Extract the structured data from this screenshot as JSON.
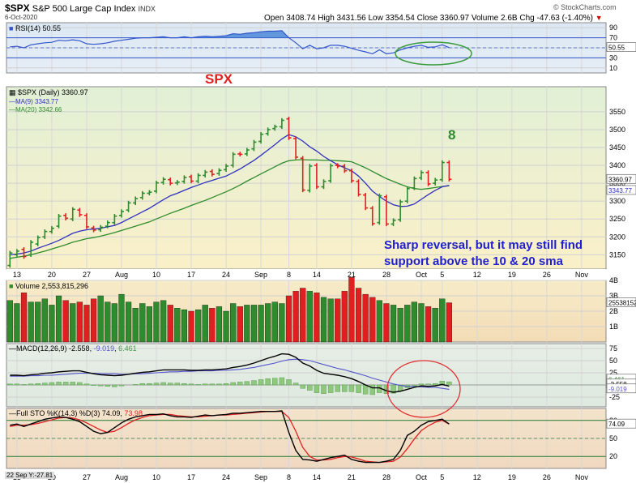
{
  "header": {
    "symbol": "$SPX",
    "name": "S&P 500 Large Cap Index",
    "exchange": "INDX",
    "date": "6-Oct-2020",
    "open_label": "Open",
    "open": "3408.74",
    "high_label": "High",
    "high": "3431.56",
    "low_label": "Low",
    "low": "3354.54",
    "close_label": "Close",
    "close": "3360.97",
    "volume_label": "Volume",
    "volume": "2.6B",
    "chg_label": "Chg",
    "chg": "-47.63 (-1.40%)",
    "brand": "© StockCharts.com"
  },
  "annotations": {
    "spx": "SPX",
    "count": "8",
    "note_line1": "Sharp reversal, but it may still find",
    "note_line2": "support above the 10 & 20 sma"
  },
  "footer": {
    "cursor_readout": "22 Sep Y:-27.81"
  },
  "colors": {
    "up": "#2e8b2e",
    "down": "#e02020",
    "ma9": "#3030c0",
    "ma20": "#2e8b2e",
    "rsi": "#3355cc",
    "macd_line": "#000000",
    "macd_signal": "#5555cc",
    "hist": "#66aa55",
    "sto_k": "#000000",
    "sto_d": "#e02020",
    "ellipse_green": "#3a9a3a",
    "ellipse_red": "#e03030"
  },
  "chart_data": {
    "type": "ohlc",
    "x_ticks": [
      {
        "label": "13",
        "i": 1
      },
      {
        "label": "20",
        "i": 6
      },
      {
        "label": "27",
        "i": 11
      },
      {
        "label": "Aug",
        "i": 16
      },
      {
        "label": "10",
        "i": 21
      },
      {
        "label": "17",
        "i": 26
      },
      {
        "label": "24",
        "i": 31
      },
      {
        "label": "Sep",
        "i": 36
      },
      {
        "label": "8",
        "i": 40
      },
      {
        "label": "14",
        "i": 44
      },
      {
        "label": "21",
        "i": 49
      },
      {
        "label": "28",
        "i": 54
      },
      {
        "label": "Oct",
        "i": 59
      },
      {
        "label": "5",
        "i": 62
      },
      {
        "label": "12",
        "i": 67
      },
      {
        "label": "19",
        "i": 72
      },
      {
        "label": "26",
        "i": 77
      },
      {
        "label": "Nov",
        "i": 82
      }
    ],
    "n_slots": 86,
    "price_panel": {
      "title": "$SPX (Daily) 3360.97",
      "ylim": [
        3110,
        3620
      ],
      "y_ticks": [
        3150,
        3200,
        3250,
        3300,
        3350,
        3400,
        3450,
        3500,
        3550
      ],
      "last_label": "3360.97",
      "ma_label": "3343.77",
      "legend": [
        {
          "name": "MA(9) 3343.77",
          "color": "#3030c0"
        },
        {
          "name": "MA(20) 3342.66",
          "color": "#2e8b2e"
        }
      ],
      "close": [
        3155,
        3160,
        3145,
        3185,
        3198,
        3215,
        3224,
        3258,
        3252,
        3277,
        3262,
        3228,
        3219,
        3227,
        3240,
        3258,
        3271,
        3295,
        3307,
        3322,
        3325,
        3351,
        3361,
        3350,
        3353,
        3366,
        3356,
        3372,
        3381,
        3375,
        3386,
        3398,
        3431,
        3431,
        3443,
        3465,
        3487,
        3500,
        3508,
        3526,
        3477,
        3423,
        3331,
        3398,
        3340,
        3355,
        3399,
        3398,
        3385,
        3357,
        3319,
        3281,
        3237,
        3315,
        3236,
        3246,
        3298,
        3335,
        3363,
        3380,
        3348,
        3359,
        3408,
        3361
      ],
      "open": [
        3120,
        3150,
        3165,
        3150,
        3180,
        3200,
        3215,
        3230,
        3260,
        3250,
        3275,
        3260,
        3225,
        3220,
        3230,
        3240,
        3260,
        3275,
        3295,
        3310,
        3322,
        3328,
        3352,
        3360,
        3351,
        3355,
        3368,
        3356,
        3372,
        3383,
        3377,
        3388,
        3400,
        3432,
        3432,
        3446,
        3467,
        3489,
        3503,
        3508,
        3530,
        3475,
        3420,
        3330,
        3400,
        3340,
        3357,
        3400,
        3398,
        3385,
        3355,
        3317,
        3280,
        3240,
        3312,
        3236,
        3248,
        3300,
        3337,
        3365,
        3380,
        3350,
        3360,
        3408
      ]
    },
    "ma9": [
      3150,
      3152,
      3155,
      3160,
      3168,
      3175,
      3182,
      3190,
      3200,
      3210,
      3216,
      3220,
      3222,
      3224,
      3228,
      3232,
      3240,
      3250,
      3260,
      3270,
      3280,
      3292,
      3304,
      3315,
      3322,
      3330,
      3338,
      3345,
      3352,
      3358,
      3364,
      3370,
      3380,
      3390,
      3402,
      3414,
      3428,
      3443,
      3458,
      3474,
      3486,
      3480,
      3468,
      3452,
      3440,
      3425,
      3413,
      3402,
      3393,
      3385,
      3370,
      3350,
      3328,
      3313,
      3300,
      3290,
      3285,
      3286,
      3292,
      3305,
      3318,
      3330,
      3340,
      3344
    ],
    "ma20": [
      3140,
      3143,
      3146,
      3150,
      3155,
      3160,
      3166,
      3172,
      3178,
      3185,
      3190,
      3195,
      3198,
      3202,
      3207,
      3212,
      3218,
      3224,
      3230,
      3236,
      3242,
      3250,
      3258,
      3266,
      3273,
      3280,
      3288,
      3295,
      3302,
      3310,
      3318,
      3326,
      3335,
      3345,
      3356,
      3366,
      3376,
      3386,
      3396,
      3406,
      3413,
      3415,
      3416,
      3415,
      3415,
      3414,
      3414,
      3413,
      3412,
      3410,
      3402,
      3393,
      3383,
      3373,
      3363,
      3355,
      3347,
      3340,
      3335,
      3333,
      3335,
      3338,
      3341,
      3343
    ],
    "rsi": {
      "title": "RSI(14) 50.55",
      "ylim": [
        0,
        100
      ],
      "y_ticks": [
        90,
        70,
        50,
        30,
        10
      ],
      "levels": [
        70,
        30
      ],
      "last_label": "50.55",
      "values": [
        52,
        53,
        50,
        56,
        58,
        60,
        61,
        65,
        64,
        66,
        64,
        58,
        57,
        58,
        60,
        63,
        65,
        67,
        69,
        70,
        70,
        71,
        72,
        70,
        70,
        72,
        70,
        72,
        73,
        72,
        73,
        74,
        78,
        77,
        79,
        80,
        82,
        83,
        83,
        84,
        70,
        60,
        48,
        55,
        48,
        50,
        55,
        55,
        53,
        49,
        45,
        42,
        38,
        46,
        38,
        40,
        46,
        50,
        53,
        55,
        51,
        52,
        56,
        50.55
      ]
    },
    "volume": {
      "title": "Volume 2,553,815,296",
      "ylim": [
        0,
        4
      ],
      "y_ticks": [
        "4B",
        "3B",
        "2B",
        "1B"
      ],
      "last_label": "2553815296",
      "values": [
        2.7,
        2.5,
        3.2,
        2.6,
        2.6,
        2.8,
        2.4,
        3.0,
        2.7,
        2.5,
        2.6,
        2.4,
        2.8,
        3.0,
        2.6,
        2.5,
        3.1,
        2.6,
        2.2,
        2.5,
        2.3,
        2.6,
        2.7,
        2.4,
        2.2,
        2.1,
        2.0,
        2.1,
        2.4,
        2.2,
        2.3,
        2.0,
        2.5,
        2.3,
        2.4,
        2.4,
        2.4,
        2.5,
        2.6,
        2.5,
        3.0,
        3.3,
        3.5,
        3.3,
        3.2,
        2.9,
        2.8,
        2.8,
        3.3,
        4.2,
        3.5,
        3.1,
        2.9,
        2.7,
        2.5,
        2.4,
        2.2,
        2.4,
        2.6,
        2.5,
        2.3,
        2.2,
        2.8,
        2.55
      ]
    },
    "macd": {
      "title": "MACD(12,26,9)",
      "title_values": [
        "-2.558",
        "-9.019",
        "6.461"
      ],
      "ylim": [
        -45,
        85
      ],
      "y_ticks": [
        75,
        50,
        25,
        0,
        -25
      ],
      "last_labels": [
        "6.461",
        "-2.558",
        "-9.019"
      ],
      "macd": [
        20,
        20,
        19,
        21,
        22,
        24,
        25,
        27,
        28,
        29,
        29,
        26,
        23,
        21,
        20,
        19,
        20,
        22,
        24,
        26,
        27,
        29,
        31,
        31,
        31,
        31,
        30,
        30,
        31,
        31,
        32,
        33,
        36,
        38,
        41,
        45,
        50,
        55,
        59,
        64,
        63,
        57,
        45,
        39,
        30,
        24,
        22,
        20,
        17,
        13,
        7,
        0,
        -6,
        -6,
        -12,
        -15,
        -13,
        -9,
        -5,
        -2,
        -3,
        -2,
        1,
        -2.558
      ],
      "signal": [
        18,
        18,
        18,
        19,
        19,
        20,
        20,
        21,
        22,
        23,
        24,
        24,
        24,
        23,
        23,
        23,
        22,
        22,
        23,
        23,
        24,
        25,
        26,
        27,
        27,
        28,
        28,
        29,
        29,
        29,
        30,
        30,
        31,
        32,
        34,
        36,
        39,
        42,
        45,
        49,
        52,
        53,
        52,
        50,
        46,
        42,
        38,
        34,
        31,
        27,
        23,
        19,
        14,
        10,
        6,
        2,
        -1,
        -3,
        -3,
        -4,
        -5,
        -5,
        -7,
        -9.019
      ],
      "hist": [
        2,
        2,
        1,
        2,
        3,
        4,
        5,
        6,
        6,
        6,
        5,
        2,
        -1,
        -2,
        -3,
        -4,
        -2,
        0,
        1,
        3,
        3,
        4,
        5,
        4,
        4,
        3,
        2,
        1,
        2,
        2,
        2,
        3,
        5,
        6,
        7,
        9,
        11,
        13,
        14,
        15,
        11,
        4,
        -7,
        -11,
        -16,
        -18,
        -16,
        -14,
        -14,
        -14,
        -16,
        -19,
        -20,
        -16,
        -18,
        -17,
        -12,
        -6,
        -2,
        2,
        2,
        3,
        8,
        6.461
      ]
    },
    "sto": {
      "title": "Full STO %K(14,3) %D(3)",
      "title_values": [
        "74.09",
        "73.98"
      ],
      "ylim": [
        0,
        100
      ],
      "y_ticks": [
        80,
        50,
        20
      ],
      "levels": [
        80,
        20
      ],
      "last_label": "74.09",
      "k": [
        72,
        74,
        70,
        74,
        78,
        82,
        84,
        86,
        85,
        82,
        78,
        70,
        62,
        58,
        60,
        68,
        76,
        82,
        86,
        88,
        90,
        90,
        91,
        88,
        86,
        86,
        85,
        87,
        89,
        88,
        89,
        90,
        92,
        92,
        93,
        94,
        95,
        95,
        95,
        96,
        60,
        30,
        15,
        14,
        12,
        15,
        18,
        20,
        22,
        15,
        12,
        10,
        10,
        10,
        12,
        15,
        30,
        55,
        62,
        72,
        78,
        80,
        82,
        74.09
      ],
      "d": [
        70,
        72,
        72,
        73,
        75,
        78,
        81,
        84,
        85,
        84,
        81,
        76,
        70,
        64,
        60,
        62,
        68,
        75,
        81,
        85,
        88,
        89,
        90,
        90,
        88,
        87,
        86,
        86,
        87,
        88,
        89,
        89,
        90,
        91,
        92,
        93,
        94,
        95,
        95,
        95,
        85,
        62,
        35,
        20,
        14,
        14,
        15,
        18,
        20,
        19,
        16,
        12,
        11,
        10,
        11,
        12,
        19,
        33,
        49,
        63,
        71,
        77,
        80,
        73.98
      ]
    }
  }
}
